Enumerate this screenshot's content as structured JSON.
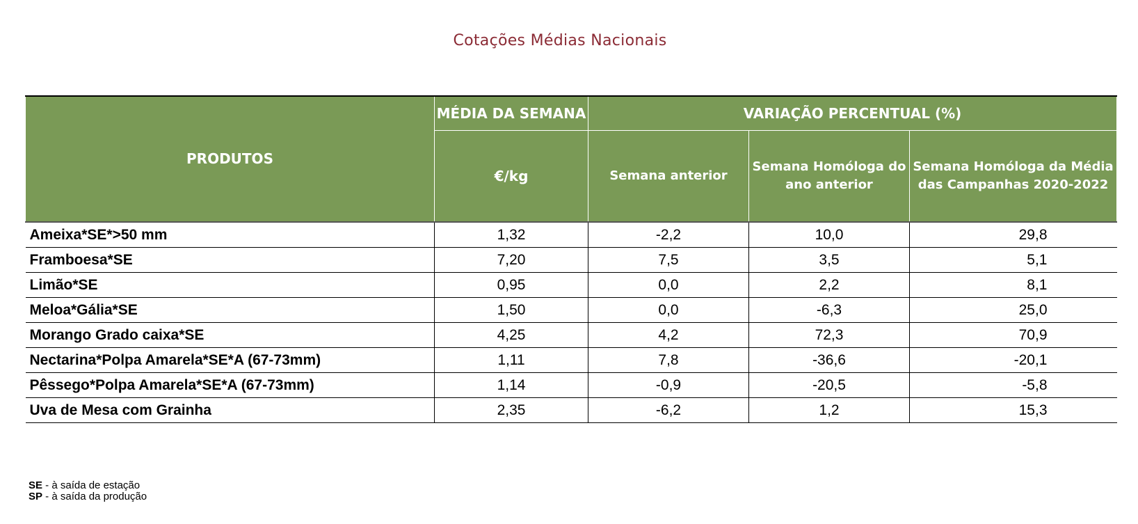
{
  "title": "Cotações Médias Nacionais",
  "header": {
    "produtos": "PRODUTOS",
    "media_semana": "MÉDIA DA SEMANA",
    "unit": "€/kg",
    "variacao": "VARIAÇÃO PERCENTUAL (%)",
    "semana_anterior": "Semana anterior",
    "homologa_ano_anterior": "Semana Homóloga do ano anterior",
    "homologa_campanhas": "Semana Homóloga da Média das Campanhas 2020-2022"
  },
  "rows": [
    {
      "produto": "Ameixa*SE*>50 mm",
      "media": "1,32",
      "semana_anterior": "-2,2",
      "ano_anterior": "10,0",
      "campanhas": "29,8"
    },
    {
      "produto": "Framboesa*SE",
      "media": "7,20",
      "semana_anterior": "7,5",
      "ano_anterior": "3,5",
      "campanhas": "5,1"
    },
    {
      "produto": "Limão*SE",
      "media": "0,95",
      "semana_anterior": "0,0",
      "ano_anterior": "2,2",
      "campanhas": "8,1"
    },
    {
      "produto": "Meloa*Gália*SE",
      "media": "1,50",
      "semana_anterior": "0,0",
      "ano_anterior": "-6,3",
      "campanhas": "25,0"
    },
    {
      "produto": "Morango Grado caixa*SE",
      "media": "4,25",
      "semana_anterior": "4,2",
      "ano_anterior": "72,3",
      "campanhas": "70,9"
    },
    {
      "produto": "Nectarina*Polpa Amarela*SE*A (67-73mm)",
      "media": "1,11",
      "semana_anterior": "7,8",
      "ano_anterior": "-36,6",
      "campanhas": "-20,1"
    },
    {
      "produto": "Pêssego*Polpa Amarela*SE*A (67-73mm)",
      "media": "1,14",
      "semana_anterior": "-0,9",
      "ano_anterior": "-20,5",
      "campanhas": "-5,8"
    },
    {
      "produto": "Uva de Mesa com Grainha",
      "media": "2,35",
      "semana_anterior": "-6,2",
      "ano_anterior": "1,2",
      "campanhas": "15,3"
    }
  ],
  "notes": [
    {
      "abbr": "SE",
      "text": " - à saída de estação"
    },
    {
      "abbr": "SP",
      "text": " - à saída da produção"
    }
  ],
  "colors": {
    "header_bg": "#7a9a56",
    "title": "#8b2b35"
  }
}
